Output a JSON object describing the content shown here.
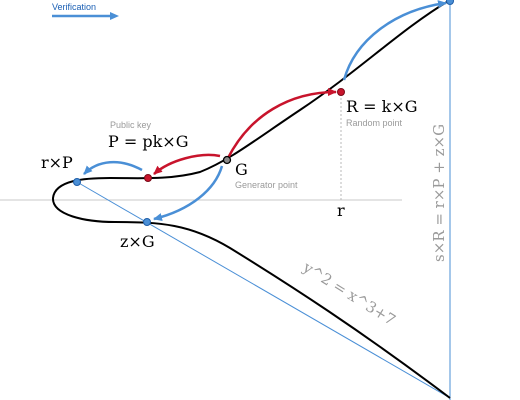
{
  "legend": {
    "verification_label": "Verification"
  },
  "labels": {
    "public_key_caption": "Public key",
    "public_key_eq": "P = pk×G",
    "r_times_p": "r×P",
    "generator": "G",
    "generator_caption": "Generator point",
    "r_eq": "R = k×G",
    "random_caption": "Random point",
    "r_value": "r",
    "z_times_g": "z×G",
    "curve_equation": "y^2 = x^3+7",
    "verification_eq": "s×R = r×P + z×G"
  },
  "colors": {
    "blue": "#4a8fd6",
    "red": "#c8142c",
    "curve": "#000000",
    "muted": "#9a9a9a",
    "axis": "#c8c8c8"
  }
}
